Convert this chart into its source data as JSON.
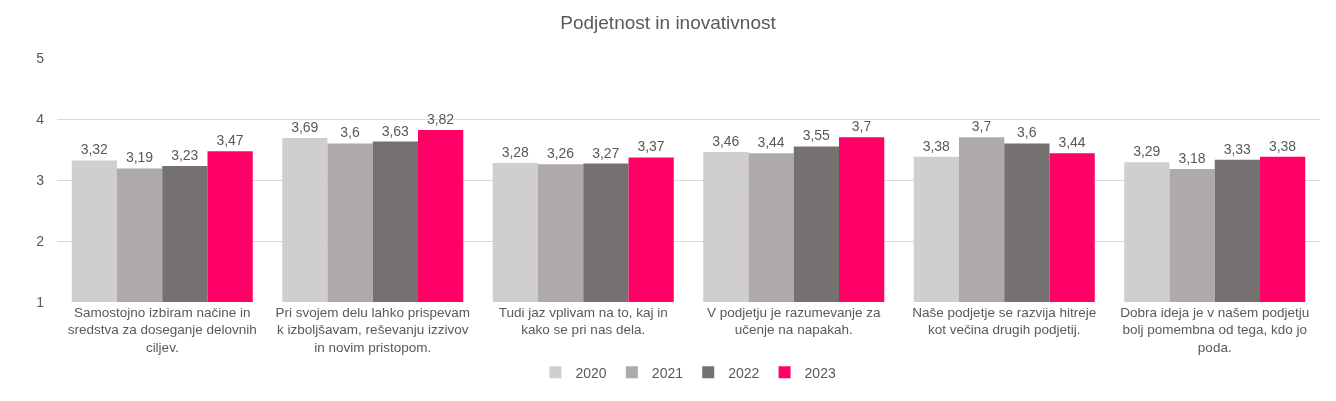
{
  "chart_data": {
    "type": "bar",
    "title": "Podjetnost in inovativnost",
    "categories": [
      "Samostojno izbiram načine in sredstva za doseganje delovnih ciljev.",
      "Pri svojem delu lahko prispevam k izboljšavam, reševanju izzivov in novim pristopom.",
      "Tudi jaz vplivam na to, kaj in kako se pri nas dela.",
      "V podjetju je razumevanje za učenje na napakah.",
      "Naše podjetje se razvija hitreje kot večina drugih podjetij.",
      "Dobra ideja je v našem podjetju bolj pomembna od tega, kdo jo poda."
    ],
    "series": [
      {
        "name": "2020",
        "color": "#d0cecf",
        "values": [
          3.32,
          3.69,
          3.28,
          3.46,
          3.38,
          3.29
        ],
        "value_labels": [
          "3,32",
          "3,69",
          "3,28",
          "3,46",
          "3,38",
          "3,29"
        ]
      },
      {
        "name": "2021",
        "color": "#aeaaaa",
        "values": [
          3.19,
          3.6,
          3.26,
          3.44,
          3.7,
          3.18
        ],
        "value_labels": [
          "3,19",
          "3,6",
          "3,26",
          "3,44",
          "3,7",
          "3,18"
        ]
      },
      {
        "name": "2022",
        "color": "#767171",
        "values": [
          3.23,
          3.63,
          3.27,
          3.55,
          3.6,
          3.33
        ],
        "value_labels": [
          "3,23",
          "3,63",
          "3,27",
          "3,55",
          "3,6",
          "3,33"
        ]
      },
      {
        "name": "2023",
        "color": "#ff0066",
        "values": [
          3.47,
          3.82,
          3.37,
          3.7,
          3.44,
          3.38
        ],
        "value_labels": [
          "3,47",
          "3,82",
          "3,37",
          "3,7",
          "3,44",
          "3,38"
        ]
      }
    ],
    "ylim": [
      1,
      5
    ],
    "yticks": [
      1,
      2,
      3,
      4,
      5
    ],
    "grid": "y",
    "legend": "bottom"
  }
}
